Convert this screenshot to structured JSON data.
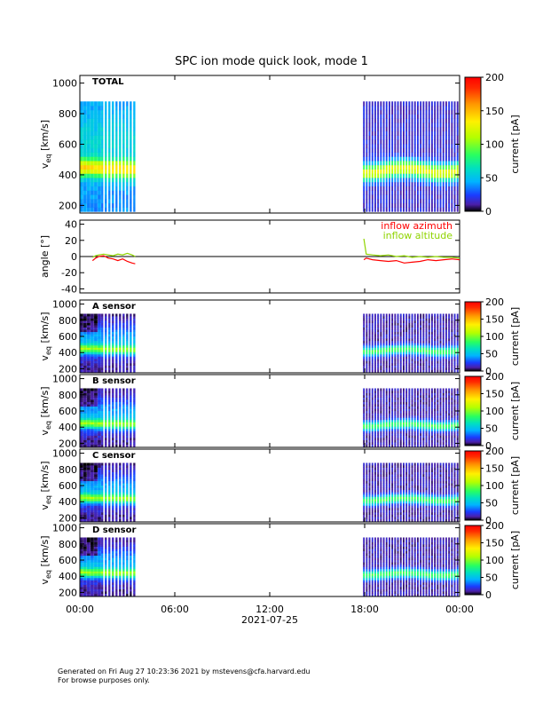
{
  "chart_data": {
    "type": "heatmap",
    "title": "SPC ion mode quick look, mode 1",
    "date_label": "2021-07-25",
    "x_ticks": [
      "00:00",
      "06:00",
      "12:00",
      "18:00",
      "00:00"
    ],
    "x_range_hours": [
      0,
      24
    ],
    "data_intervals_hours": [
      [
        0,
        3.6
      ],
      [
        17.9,
        24
      ]
    ],
    "panels": [
      {
        "kind": "spectrogram",
        "label": "TOTAL",
        "ylabel_main": "v",
        "ylabel_sub": "eq",
        "ylabel_unit": " [km/s]",
        "ylim": [
          150,
          1050
        ],
        "y_ticks": [
          200,
          400,
          600,
          800,
          1000
        ],
        "colorbar": {
          "label": "current [pA]",
          "range": [
            0,
            200
          ],
          "ticks": [
            0,
            50,
            100,
            150,
            200
          ]
        }
      },
      {
        "kind": "angle",
        "ylabel": "angle [°]",
        "ylim": [
          -45,
          45
        ],
        "y_ticks": [
          -40,
          -20,
          0,
          20,
          40
        ],
        "series": [
          {
            "name": "inflow azimuth",
            "color": "#ff0000",
            "points": [
              [
                0.8,
                -5
              ],
              [
                1.0,
                -2
              ],
              [
                1.2,
                0
              ],
              [
                1.5,
                1
              ],
              [
                1.8,
                -2
              ],
              [
                2.1,
                -3
              ],
              [
                2.4,
                -5
              ],
              [
                2.7,
                -3
              ],
              [
                3.0,
                -6
              ],
              [
                3.3,
                -8
              ],
              [
                3.5,
                -9
              ],
              [
                17.95,
                -4
              ],
              [
                18.1,
                -2
              ],
              [
                18.5,
                -4
              ],
              [
                19.0,
                -5
              ],
              [
                19.5,
                -6
              ],
              [
                20.0,
                -5
              ],
              [
                20.5,
                -8
              ],
              [
                21.0,
                -7
              ],
              [
                21.5,
                -6
              ],
              [
                22.0,
                -4
              ],
              [
                22.5,
                -5
              ],
              [
                23.0,
                -4
              ],
              [
                23.5,
                -3
              ],
              [
                24.0,
                -4
              ]
            ]
          },
          {
            "name": "inflow altitude",
            "color": "#8fd400",
            "points": [
              [
                0.8,
                -1
              ],
              [
                1.0,
                1
              ],
              [
                1.2,
                2
              ],
              [
                1.5,
                3
              ],
              [
                1.8,
                2
              ],
              [
                2.1,
                1
              ],
              [
                2.4,
                3
              ],
              [
                2.7,
                2
              ],
              [
                3.0,
                4
              ],
              [
                3.3,
                2
              ],
              [
                3.5,
                0
              ],
              [
                17.95,
                22
              ],
              [
                18.1,
                3
              ],
              [
                18.5,
                2
              ],
              [
                19.0,
                1
              ],
              [
                19.5,
                2
              ],
              [
                20.0,
                0
              ],
              [
                20.5,
                1
              ],
              [
                21.0,
                -1
              ],
              [
                21.5,
                0
              ],
              [
                22.0,
                -1
              ],
              [
                22.5,
                0
              ],
              [
                23.0,
                -1
              ],
              [
                23.5,
                -1
              ],
              [
                24.0,
                -2
              ]
            ]
          }
        ]
      },
      {
        "kind": "spectrogram",
        "label": "A sensor",
        "ylabel_main": "v",
        "ylabel_sub": "eq",
        "ylabel_unit": " [km/s]",
        "ylim": [
          150,
          1050
        ],
        "y_ticks": [
          200,
          400,
          600,
          800,
          1000
        ],
        "colorbar": {
          "label": "current [pA]",
          "range": [
            0,
            200
          ],
          "ticks": [
            0,
            50,
            100,
            150,
            200
          ]
        }
      },
      {
        "kind": "spectrogram",
        "label": "B sensor",
        "ylabel_main": "v",
        "ylabel_sub": "eq",
        "ylabel_unit": " [km/s]",
        "ylim": [
          150,
          1050
        ],
        "y_ticks": [
          200,
          400,
          600,
          800,
          1000
        ],
        "colorbar": {
          "label": "current [pA]",
          "range": [
            0,
            200
          ],
          "ticks": [
            0,
            50,
            100,
            150,
            200
          ]
        }
      },
      {
        "kind": "spectrogram",
        "label": "C sensor",
        "ylabel_main": "v",
        "ylabel_sub": "eq",
        "ylabel_unit": " [km/s]",
        "ylim": [
          150,
          1050
        ],
        "y_ticks": [
          200,
          400,
          600,
          800,
          1000
        ],
        "colorbar": {
          "label": "current [pA]",
          "range": [
            0,
            200
          ],
          "ticks": [
            0,
            50,
            100,
            150,
            200
          ]
        }
      },
      {
        "kind": "spectrogram",
        "label": "D sensor",
        "ylabel_main": "v",
        "ylabel_sub": "eq",
        "ylabel_unit": " [km/s]",
        "ylim": [
          150,
          1050
        ],
        "y_ticks": [
          200,
          400,
          600,
          800,
          1000
        ],
        "colorbar": {
          "label": "current [pA]",
          "range": [
            0,
            200
          ],
          "ticks": [
            0,
            50,
            100,
            150,
            200
          ]
        }
      }
    ]
  },
  "footer": {
    "line1": "Generated on Fri Aug 27 10:23:36 2021 by mstevens@cfa.harvard.edu",
    "line2": "For browse purposes only."
  }
}
